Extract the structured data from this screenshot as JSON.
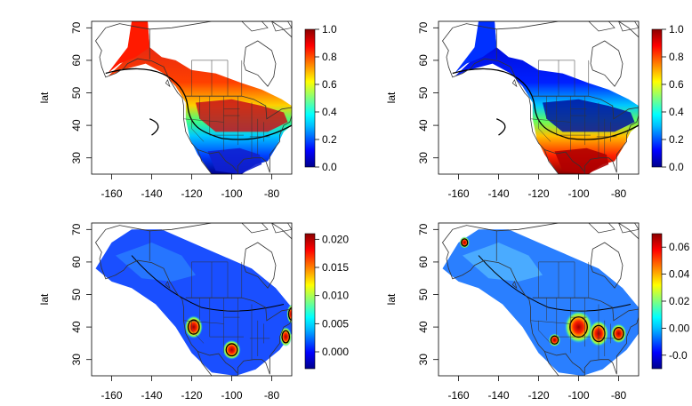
{
  "chart_data": [
    {
      "type": "heatmap",
      "panel": "top-left",
      "xlabel": "",
      "ylabel": "lat",
      "xlim": [
        -170,
        -70
      ],
      "ylim": [
        25,
        72
      ],
      "x_ticks": [
        -160,
        -140,
        -120,
        -100,
        -80
      ],
      "y_ticks": [
        30,
        40,
        50,
        60,
        70
      ],
      "x_tick_labels": [
        "-160",
        "-140",
        "-120",
        "-100",
        "-80"
      ],
      "y_tick_labels": [
        "30",
        "40",
        "50",
        "60",
        "70"
      ],
      "colorbar": {
        "range": [
          0,
          1
        ],
        "ticks": [
          0.0,
          0.2,
          0.4,
          0.6,
          0.8,
          1.0
        ],
        "tick_labels": [
          "0.0",
          "0.2",
          "0.4",
          "0.6",
          "0.8",
          "1.0"
        ]
      },
      "colormap": [
        "#00008b",
        "#0000ff",
        "#00bfff",
        "#00ffff",
        "#7fff7f",
        "#ffff00",
        "#ff7f00",
        "#ff0000",
        "#8b0000"
      ]
    },
    {
      "type": "heatmap",
      "panel": "top-right",
      "xlabel": "",
      "ylabel": "lat",
      "xlim": [
        -170,
        -70
      ],
      "ylim": [
        25,
        72
      ],
      "x_ticks": [
        -160,
        -140,
        -120,
        -100,
        -80
      ],
      "y_ticks": [
        30,
        40,
        50,
        60,
        70
      ],
      "x_tick_labels": [
        "-160",
        "-140",
        "-120",
        "-100",
        "-80"
      ],
      "y_tick_labels": [
        "30",
        "40",
        "50",
        "60",
        "70"
      ],
      "colorbar": {
        "range": [
          0,
          1
        ],
        "ticks": [
          0.0,
          0.2,
          0.4,
          0.6,
          0.8,
          1.0
        ],
        "tick_labels": [
          "0.0",
          "0.2",
          "0.4",
          "0.6",
          "0.8",
          "1.0"
        ]
      }
    },
    {
      "type": "heatmap",
      "panel": "bottom-left",
      "xlabel": "",
      "ylabel": "lat",
      "xlim": [
        -170,
        -70
      ],
      "ylim": [
        25,
        72
      ],
      "x_ticks": [
        -160,
        -140,
        -120,
        -100,
        -80
      ],
      "y_ticks": [
        30,
        40,
        50,
        60,
        70
      ],
      "x_tick_labels": [
        "-160",
        "-140",
        "-120",
        "-100",
        "-80"
      ],
      "y_tick_labels": [
        "30",
        "40",
        "50",
        "60",
        "70"
      ],
      "colorbar": {
        "range": [
          -0.003,
          0.021
        ],
        "ticks": [
          0.0,
          0.005,
          0.01,
          0.015,
          0.02
        ],
        "tick_labels": [
          "0.000",
          "0.005",
          "0.010",
          "0.015",
          "0.020"
        ]
      }
    },
    {
      "type": "heatmap",
      "panel": "bottom-right",
      "xlabel": "",
      "ylabel": "lat",
      "xlim": [
        -170,
        -70
      ],
      "ylim": [
        25,
        72
      ],
      "x_ticks": [
        -160,
        -140,
        -120,
        -100,
        -80
      ],
      "y_ticks": [
        30,
        40,
        50,
        60,
        70
      ],
      "x_tick_labels": [
        "-160",
        "-140",
        "-120",
        "-100",
        "-80"
      ],
      "y_tick_labels": [
        "30",
        "40",
        "50",
        "60",
        "70"
      ],
      "colorbar": {
        "range": [
          -0.03,
          0.07
        ],
        "ticks": [
          -0.02,
          0.0,
          0.02,
          0.04,
          0.06
        ],
        "tick_labels": [
          "-0.0",
          "0.00",
          "0.02",
          "0.04",
          "0.06"
        ]
      }
    }
  ]
}
